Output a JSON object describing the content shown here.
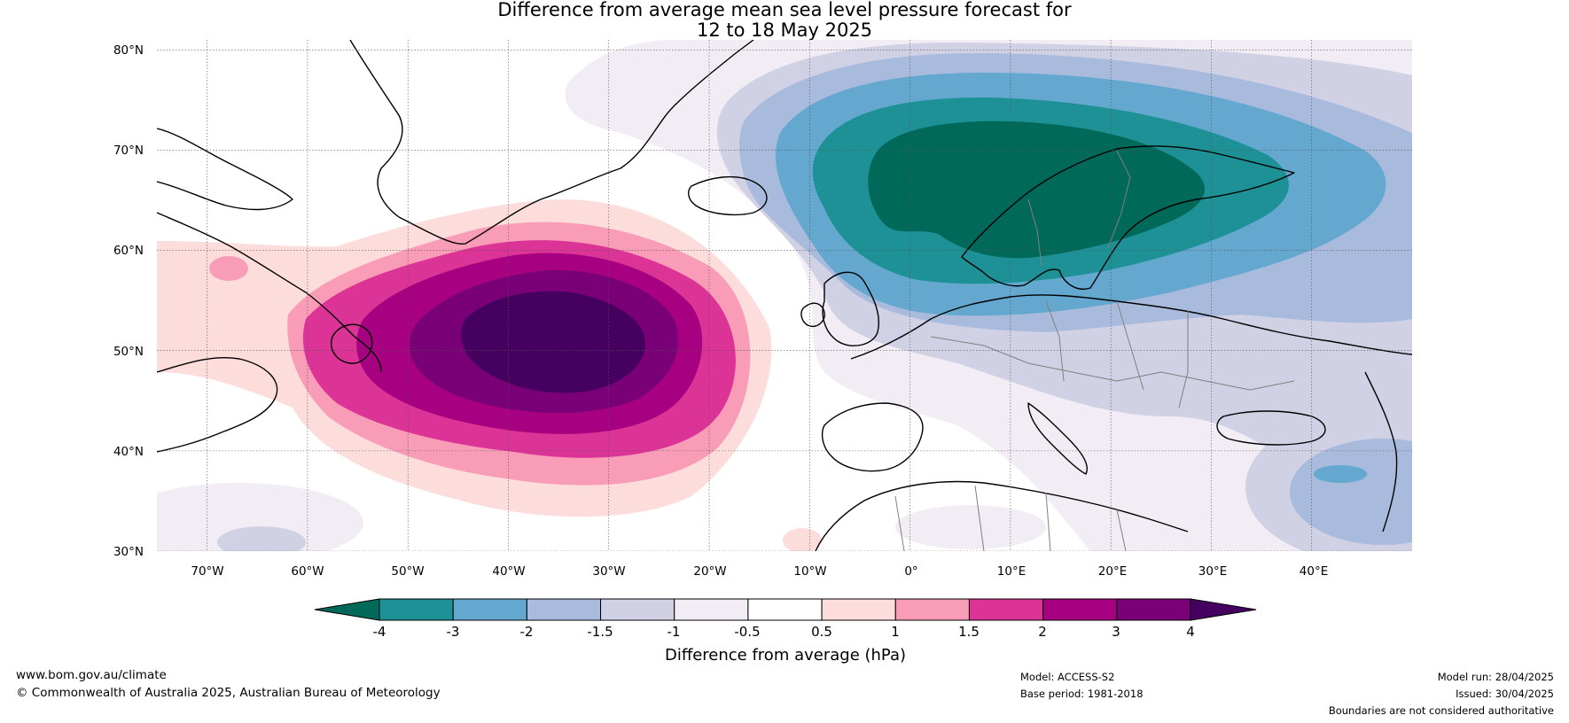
{
  "title": {
    "line1": "Difference from average mean sea level pressure forecast for",
    "line2": "12 to 18 May 2025"
  },
  "map": {
    "lat_ticks": [
      "80°N",
      "70°N",
      "60°N",
      "50°N",
      "40°N",
      "30°N"
    ],
    "lon_ticks": [
      "70°W",
      "60°W",
      "50°W",
      "40°W",
      "30°W",
      "20°W",
      "10°W",
      "0°",
      "10°E",
      "20°E",
      "30°E",
      "40°E"
    ],
    "extent": {
      "lon": [
        -75,
        50
      ],
      "lat": [
        30,
        81
      ]
    },
    "anomaly_centres": [
      {
        "label": "positive anomaly over North Atlantic",
        "lon": -35,
        "lat": 52,
        "value": 4
      },
      {
        "label": "negative anomaly over Scandinavia",
        "lon": 8,
        "lat": 66,
        "value": -4
      }
    ]
  },
  "colorbar": {
    "title": "Difference from average (hPa)",
    "tick_labels": [
      "-4",
      "-3",
      "-2",
      "-1.5",
      "-1",
      "-0.5",
      "0.5",
      "1",
      "1.5",
      "2",
      "3",
      "4"
    ],
    "below_color": "#00695a",
    "above_color": "#450060",
    "bin_colors": [
      "#1d9196",
      "#64a8cf",
      "#a9bbdd",
      "#d1d1e5",
      "#f2edf5",
      "#ffffff",
      "#fddcdc",
      "#f89cb8",
      "#dc3496",
      "#a70080",
      "#7a0078"
    ]
  },
  "footer": {
    "website": "www.bom.gov.au/climate",
    "copyright": "© Commonwealth of Australia 2025, Australian Bureau of Meteorology",
    "model": "Model: ACCESS-S2",
    "base_period": "Base period: 1981-2018",
    "model_run": "Model run: 28/04/2025",
    "issued": "Issued: 30/04/2025",
    "disclaimer": "Boundaries are not considered authoritative"
  }
}
